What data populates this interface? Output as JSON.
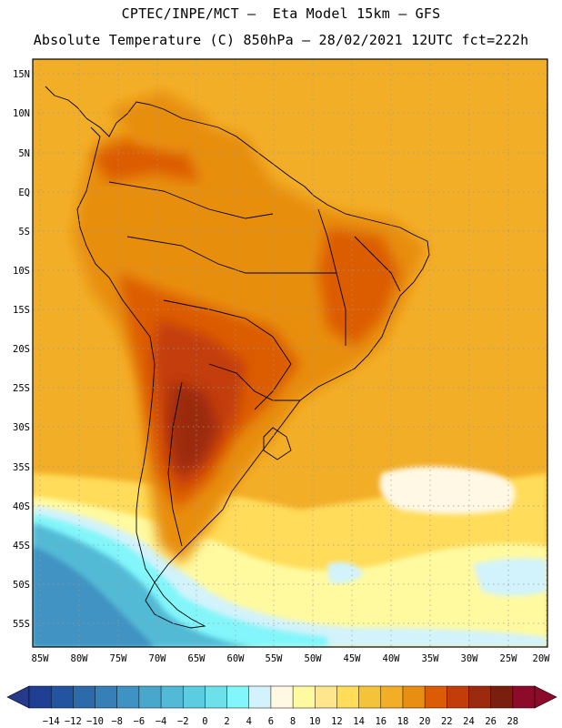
{
  "header": {
    "line1": "CPTEC/INPE/MCT –  Eta Model 15km – GFS",
    "line2": "Absolute Temperature (C) 850hPa – 28/02/2021 12UTC fct=222h"
  },
  "axes": {
    "lat_labels": [
      "15N",
      "10N",
      "5N",
      "EQ",
      "5S",
      "10S",
      "15S",
      "20S",
      "25S",
      "30S",
      "35S",
      "40S",
      "45S",
      "50S",
      "55S"
    ],
    "lon_labels": [
      "85W",
      "80W",
      "75W",
      "70W",
      "65W",
      "60W",
      "55W",
      "50W",
      "45W",
      "40W",
      "35W",
      "30W",
      "25W",
      "20W"
    ]
  },
  "colorbar": {
    "tick_labels": [
      "−14",
      "−12",
      "−10",
      "−8",
      "−6",
      "−4",
      "−2",
      "0",
      "2",
      "4",
      "6",
      "8",
      "10",
      "12",
      "14",
      "16",
      "18",
      "20",
      "22",
      "24",
      "26",
      "28"
    ],
    "colors": [
      "#1f3f93",
      "#23549f",
      "#2c6aaa",
      "#3680b7",
      "#3f93c2",
      "#49a7cc",
      "#52bad6",
      "#5ccde1",
      "#6ee0ea",
      "#82f6fa",
      "#d2f3fb",
      "#fff8e4",
      "#fffaa0",
      "#ffe68c",
      "#ffdc5a",
      "#f5c23c",
      "#f3ae28",
      "#e88e10",
      "#dc5c06",
      "#c33d0a",
      "#9b2a0e",
      "#7a1e10",
      "#8c0a2a"
    ],
    "under_color": "#273a8a",
    "over_color": "#8c0a2a"
  }
}
